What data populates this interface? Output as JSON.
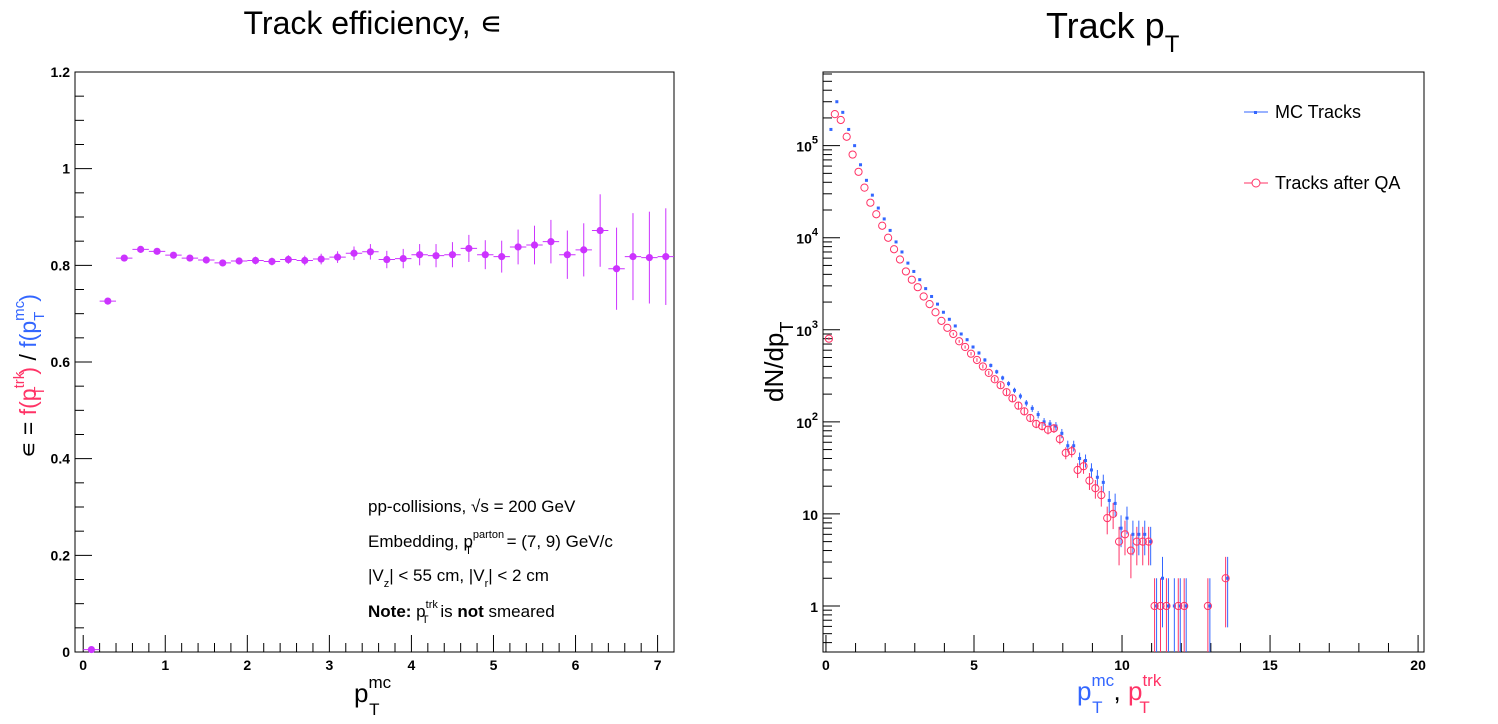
{
  "colors": {
    "efficiency": "#cc33ff",
    "mc": "#3366ff",
    "qa": "#ff3366",
    "axis": "#000000"
  },
  "chart_data": [
    {
      "type": "scatter",
      "title": "Track efficiency, ∊",
      "ylabel": {
        "prefix": "∊ = ",
        "num": "f(p",
        "num_sub": "T",
        "num_sup": "trk",
        "close": ")",
        "slash": " / ",
        "den": "f(p",
        "den_sub": "T",
        "den_sup": "mc",
        "den_close": ")"
      },
      "xlabel": {
        "base": "p",
        "sub": "T",
        "sup": "mc"
      },
      "xlim": [
        -0.1,
        7.2
      ],
      "ylim": [
        0,
        1.2
      ],
      "xticks": [
        "0",
        "1",
        "2",
        "3",
        "4",
        "5",
        "6",
        "7"
      ],
      "yticks": [
        "0",
        "0.2",
        "0.4",
        "0.6",
        "0.8",
        "1",
        "1.2"
      ],
      "grid": false,
      "annotation": {
        "line1": "pp-collisions, ",
        "line1_sqrt": "√s",
        "line1_end": " = 200 GeV",
        "line2": "Embedding, p",
        "line2_sub": "T",
        "line2_sup": "parton",
        "line2_end": " = (7, 9) GeV/c",
        "line3a": "|V",
        "line3a_sub": "z",
        "line3b": "| < 55 cm, |V",
        "line3b_sub": "r",
        "line3c": "| < 2 cm",
        "line4_bold1": "Note:",
        "line4_p": " p",
        "line4_sub": "T",
        "line4_sup": "trk",
        "line4_is": " is ",
        "line4_bold2": "not",
        "line4_end": " smeared"
      },
      "series": [
        {
          "x": [
            0.1,
            0.3,
            0.5,
            0.7,
            0.9,
            1.1,
            1.3,
            1.5,
            1.7,
            1.9,
            2.1,
            2.3,
            2.5,
            2.7,
            2.9,
            3.1,
            3.3,
            3.5,
            3.7,
            3.9,
            4.1,
            4.3,
            4.5,
            4.7,
            4.9,
            5.1,
            5.3,
            5.5,
            5.7,
            5.9,
            6.1,
            6.3,
            6.5,
            6.7,
            6.9,
            7.1
          ],
          "y": [
            0.005,
            0.726,
            0.815,
            0.833,
            0.829,
            0.821,
            0.815,
            0.811,
            0.805,
            0.809,
            0.81,
            0.808,
            0.812,
            0.81,
            0.813,
            0.817,
            0.825,
            0.828,
            0.812,
            0.814,
            0.822,
            0.82,
            0.822,
            0.835,
            0.822,
            0.818,
            0.838,
            0.842,
            0.849,
            0.822,
            0.832,
            0.872,
            0.793,
            0.818,
            0.816,
            0.818
          ],
          "yerr": [
            0.001,
            0.005,
            0.005,
            0.005,
            0.005,
            0.006,
            0.006,
            0.006,
            0.007,
            0.007,
            0.008,
            0.008,
            0.009,
            0.01,
            0.011,
            0.012,
            0.014,
            0.016,
            0.018,
            0.02,
            0.022,
            0.024,
            0.026,
            0.028,
            0.03,
            0.033,
            0.036,
            0.04,
            0.045,
            0.05,
            0.055,
            0.075,
            0.085,
            0.09,
            0.095,
            0.1
          ]
        }
      ]
    },
    {
      "type": "scatter",
      "title": "Track p",
      "title_sub": "T",
      "ylabel": {
        "base": "dN/dp",
        "sub": "T"
      },
      "xlabel": {
        "a": "p",
        "a_sub": "T",
        "a_sup": "mc",
        "comma": ", ",
        "b": "p",
        "b_sub": "T",
        "b_sup": "trk"
      },
      "xlim": [
        -0.1,
        20.2
      ],
      "ylim_log10": [
        -0.5,
        5.8
      ],
      "yscale": "log",
      "xticks": [
        "0",
        "5",
        "10",
        "15",
        "20"
      ],
      "yticks": [
        {
          "base": "10",
          "sup": "5"
        },
        {
          "base": "10",
          "sup": "4"
        },
        {
          "base": "10",
          "sup": "3"
        },
        {
          "base": "10",
          "sup": "2"
        },
        {
          "base": "10",
          "sup": ""
        },
        {
          "base": "1",
          "sup": ""
        }
      ],
      "grid": false,
      "legend": {
        "position": "top-right"
      },
      "series": [
        {
          "name": "MC Tracks",
          "x": [
            0.1,
            0.3,
            0.5,
            0.7,
            0.9,
            1.1,
            1.3,
            1.5,
            1.7,
            1.9,
            2.1,
            2.3,
            2.5,
            2.7,
            2.9,
            3.1,
            3.3,
            3.5,
            3.7,
            3.9,
            4.1,
            4.3,
            4.5,
            4.7,
            4.9,
            5.1,
            5.3,
            5.5,
            5.7,
            5.9,
            6.1,
            6.3,
            6.5,
            6.7,
            6.9,
            7.1,
            7.3,
            7.5,
            7.7,
            7.9,
            8.1,
            8.3,
            8.5,
            8.7,
            8.9,
            9.1,
            9.3,
            9.5,
            9.7,
            9.9,
            10.1,
            10.3,
            10.5,
            10.7,
            10.9,
            11.1,
            11.3,
            11.5,
            11.7,
            11.9,
            12.1,
            12.9,
            13.5
          ],
          "y": [
            150000,
            300000,
            230000,
            150000,
            100000,
            62000,
            42000,
            29000,
            21000,
            16000,
            12000,
            9000,
            7000,
            5300,
            4300,
            3500,
            2800,
            2300,
            1900,
            1550,
            1300,
            1100,
            900,
            780,
            650,
            560,
            470,
            410,
            350,
            300,
            260,
            220,
            190,
            160,
            140,
            120,
            100,
            95,
            90,
            75,
            55,
            55,
            40,
            38,
            30,
            25,
            22,
            14,
            13,
            7,
            9,
            6,
            6,
            6,
            5,
            1,
            2,
            1,
            1,
            1,
            1,
            1,
            2
          ]
        },
        {
          "name": "Tracks after QA",
          "x": [
            0.1,
            0.3,
            0.5,
            0.7,
            0.9,
            1.1,
            1.3,
            1.5,
            1.7,
            1.9,
            2.1,
            2.3,
            2.5,
            2.7,
            2.9,
            3.1,
            3.3,
            3.5,
            3.7,
            3.9,
            4.1,
            4.3,
            4.5,
            4.7,
            4.9,
            5.1,
            5.3,
            5.5,
            5.7,
            5.9,
            6.1,
            6.3,
            6.5,
            6.7,
            6.9,
            7.1,
            7.3,
            7.5,
            7.7,
            7.9,
            8.1,
            8.3,
            8.5,
            8.7,
            8.9,
            9.1,
            9.3,
            9.5,
            9.7,
            9.9,
            10.1,
            10.3,
            10.5,
            10.7,
            10.9,
            11.1,
            11.3,
            11.5,
            11.9,
            12.1,
            12.9,
            13.5
          ],
          "y": [
            800,
            220000,
            190000,
            125000,
            80000,
            52000,
            35000,
            24000,
            18000,
            13500,
            10000,
            7500,
            5800,
            4300,
            3500,
            2900,
            2300,
            1900,
            1550,
            1250,
            1050,
            900,
            750,
            650,
            550,
            470,
            400,
            340,
            290,
            250,
            210,
            180,
            150,
            130,
            110,
            95,
            90,
            82,
            85,
            65,
            46,
            48,
            30,
            33,
            23,
            19,
            16,
            9,
            10,
            5,
            6,
            4,
            5,
            5,
            5,
            1,
            1,
            1,
            1,
            1,
            1,
            2
          ]
        }
      ]
    }
  ]
}
